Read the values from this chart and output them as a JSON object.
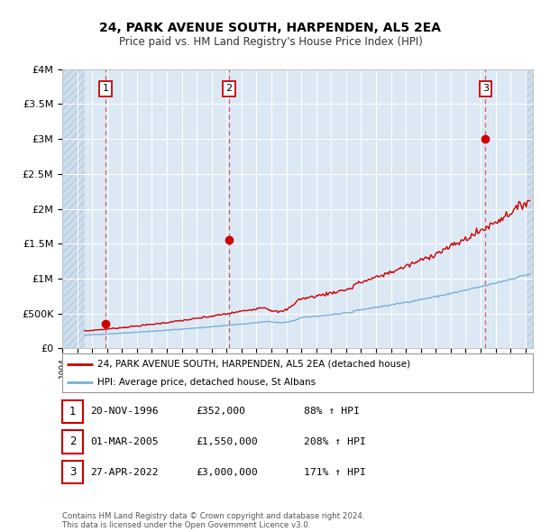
{
  "title": "24, PARK AVENUE SOUTH, HARPENDEN, AL5 2EA",
  "subtitle": "Price paid vs. HM Land Registry's House Price Index (HPI)",
  "legend_label_red": "24, PARK AVENUE SOUTH, HARPENDEN, AL5 2EA (detached house)",
  "legend_label_blue": "HPI: Average price, detached house, St Albans",
  "footer_line1": "Contains HM Land Registry data © Crown copyright and database right 2024.",
  "footer_line2": "This data is licensed under the Open Government Licence v3.0.",
  "transactions": [
    {
      "num": 1,
      "date": "20-NOV-1996",
      "price": 352000,
      "hpi_pct": "88% ↑ HPI"
    },
    {
      "num": 2,
      "date": "01-MAR-2005",
      "price": 1550000,
      "hpi_pct": "208% ↑ HPI"
    },
    {
      "num": 3,
      "date": "27-APR-2022",
      "price": 3000000,
      "hpi_pct": "171% ↑ HPI"
    }
  ],
  "transaction_dates_decimal": [
    1996.896,
    2005.163,
    2022.323
  ],
  "transaction_prices": [
    352000,
    1550000,
    3000000
  ],
  "ylim": [
    0,
    4000000
  ],
  "yticks": [
    0,
    500000,
    1000000,
    1500000,
    2000000,
    2500000,
    3000000,
    3500000,
    4000000
  ],
  "ytick_labels": [
    "£0",
    "£500K",
    "£1M",
    "£1.5M",
    "£2M",
    "£2.5M",
    "£3M",
    "£3.5M",
    "£4M"
  ],
  "xlim_start": 1994.0,
  "xlim_end": 2025.5,
  "data_start_year": 1995.5,
  "background_color": "#dce9f5",
  "hatch_color": "#c8d8e8",
  "red_color": "#cc0000",
  "blue_color": "#7bafd4",
  "grid_color": "#ffffff",
  "vline_color": "#cc4444"
}
